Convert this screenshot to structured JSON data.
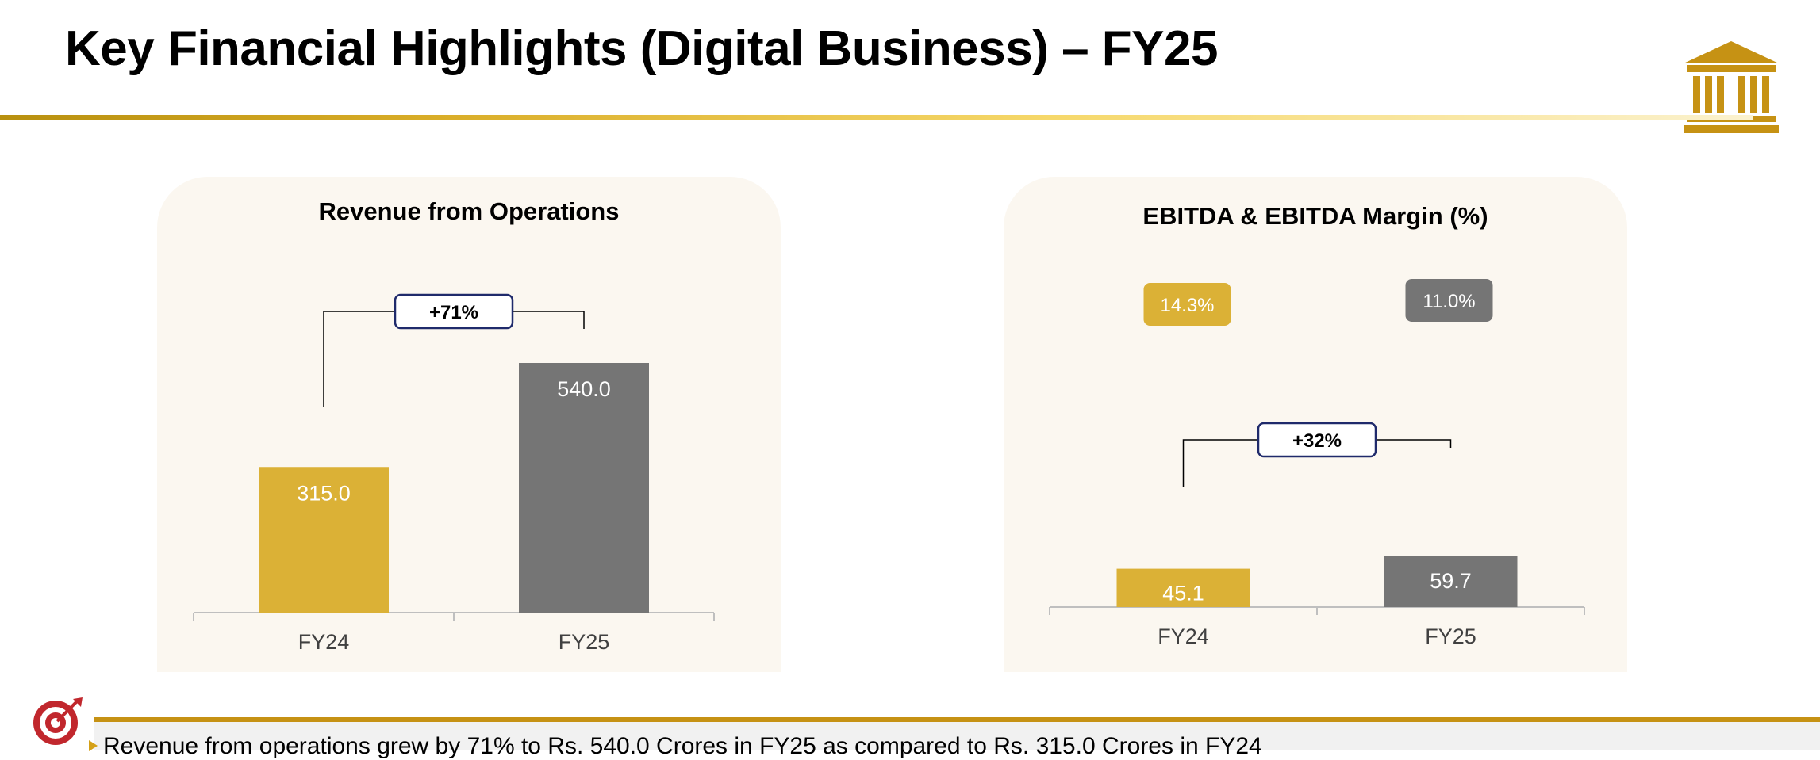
{
  "slide": {
    "title": "Key Financial Highlights (Digital Business) – FY25",
    "footer_summary": "Revenue from operations grew by 71% to Rs. 540.0 Crores in FY25 as compared to Rs. 315.0 Crores in FY24"
  },
  "colors": {
    "gold": "#dbb136",
    "grey": "#757575",
    "navy": "#1f2a6b",
    "brand_gold": "#c69214",
    "panel_bg": "#fbf7f0"
  },
  "icons": {
    "logo": "bank-building-icon",
    "target": "target-dart-icon",
    "bullet": "triangle-bullet-icon"
  },
  "chart_data": [
    {
      "type": "bar",
      "title": "Revenue from Operations",
      "categories": [
        "FY24",
        "FY25"
      ],
      "values": [
        315.0,
        540.0
      ],
      "value_labels": [
        "315.0",
        "540.0"
      ],
      "growth_label": "+71%",
      "ylim": [
        0,
        600
      ],
      "xlabel": "",
      "ylabel": ""
    },
    {
      "type": "bar",
      "title": "EBITDA & EBITDA Margin (%)",
      "categories": [
        "FY24",
        "FY25"
      ],
      "values": [
        45.1,
        59.7
      ],
      "value_labels": [
        "45.1",
        "59.7"
      ],
      "margins": [
        14.3,
        11.0
      ],
      "margin_labels": [
        "14.3%",
        "11.0%"
      ],
      "growth_label": "+32%",
      "ylim": [
        0,
        300
      ],
      "xlabel": "",
      "ylabel": ""
    }
  ]
}
